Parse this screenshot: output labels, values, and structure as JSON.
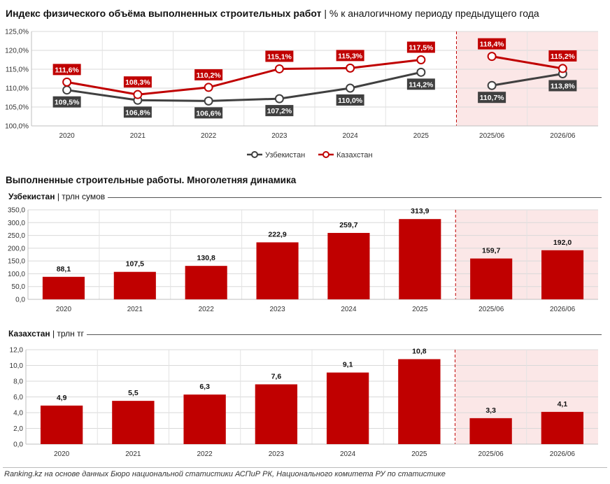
{
  "header": {
    "title_bold": "Индекс физического объёма выполненных строительных работ",
    "title_rest": "| % к аналогичному периоду предыдущего года",
    "section2_title": "Выполненные строительные работы. Многолетняя динамика",
    "uz_name": "Узбекистан",
    "uz_unit": "| трлн сумов",
    "kz_name": "Казахстан",
    "kz_unit": "| трлн тг"
  },
  "footer": {
    "source": "Ranking.kz на основе данных Бюро национальной статистики АСПиР РК, Национального комитета РУ по статистике"
  },
  "colors": {
    "red": "#c00000",
    "dark": "#404040",
    "forecast_bg": "#fbe7e7",
    "dashed": "#c00000"
  },
  "chart_data": [
    {
      "type": "line",
      "categories": [
        "2020",
        "2021",
        "2022",
        "2023",
        "2024",
        "2025",
        "2025/06",
        "2026/06"
      ],
      "ylim": [
        100,
        125
      ],
      "yticks": [
        "100,0%",
        "105,0%",
        "110,0%",
        "115,0%",
        "120,0%",
        "125,0%"
      ],
      "grid": true,
      "legend_position": "bottom",
      "series": [
        {
          "name": "Узбекистан",
          "color": "#404040",
          "values": [
            109.5,
            106.8,
            106.6,
            107.2,
            110.0,
            114.2,
            110.7,
            113.8
          ],
          "labels": [
            "109,5%",
            "106,8%",
            "106,6%",
            "107,2%",
            "110,0%",
            "114,2%",
            "110,7%",
            "113,8%"
          ]
        },
        {
          "name": "Казахстан",
          "color": "#c00000",
          "values": [
            111.6,
            108.3,
            110.2,
            115.1,
            115.3,
            117.5,
            118.4,
            115.2
          ],
          "labels": [
            "111,6%",
            "108,3%",
            "110,2%",
            "115,1%",
            "115,3%",
            "117,5%",
            "118,4%",
            "115,2%"
          ]
        }
      ]
    },
    {
      "type": "bar",
      "categories": [
        "2020",
        "2021",
        "2022",
        "2023",
        "2024",
        "2025",
        "2025/06",
        "2026/06"
      ],
      "values": [
        88.1,
        107.5,
        130.8,
        222.9,
        259.7,
        313.9,
        159.7,
        192.0
      ],
      "labels": [
        "88,1",
        "107,5",
        "130,8",
        "222,9",
        "259,7",
        "313,9",
        "159,7",
        "192,0"
      ],
      "ylim": [
        0,
        350
      ],
      "yticks": [
        "0,0",
        "50,0",
        "100,0",
        "150,0",
        "200,0",
        "250,0",
        "300,0",
        "350,0"
      ],
      "grid": true
    },
    {
      "type": "bar",
      "categories": [
        "2020",
        "2021",
        "2022",
        "2023",
        "2024",
        "2025",
        "2025/06",
        "2026/06"
      ],
      "values": [
        4.9,
        5.5,
        6.3,
        7.6,
        9.1,
        10.8,
        3.3,
        4.1
      ],
      "labels": [
        "4,9",
        "5,5",
        "6,3",
        "7,6",
        "9,1",
        "10,8",
        "3,3",
        "4,1"
      ],
      "ylim": [
        0,
        12
      ],
      "yticks": [
        "0,0",
        "2,0",
        "4,0",
        "6,0",
        "8,0",
        "10,0",
        "12,0"
      ],
      "grid": true
    }
  ]
}
